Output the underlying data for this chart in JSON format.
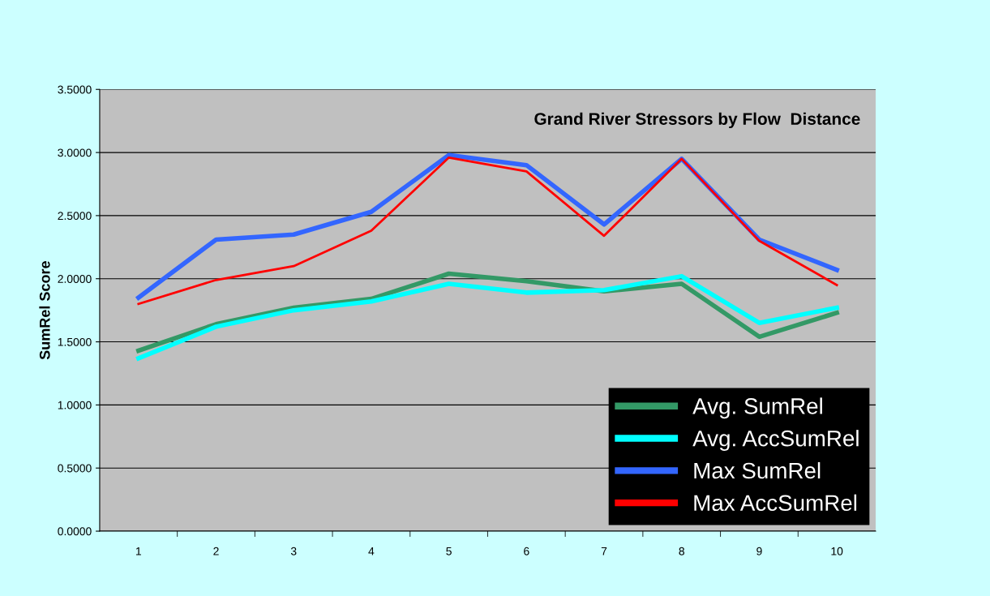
{
  "chart_data": {
    "type": "line",
    "title": "Grand River Stressors by Flow  Distance",
    "ylabel": "SumRel Score",
    "categories": [
      "1",
      "2",
      "3",
      "4",
      "5",
      "6",
      "7",
      "8",
      "9",
      "10"
    ],
    "series": [
      {
        "name": "Avg. SumRel",
        "color": "#339966",
        "values": [
          1.43,
          1.64,
          1.77,
          1.84,
          2.04,
          1.98,
          1.9,
          1.96,
          1.54,
          1.73
        ]
      },
      {
        "name": "Avg. AccSumRel",
        "color": "#00ffff",
        "values": [
          1.37,
          1.62,
          1.75,
          1.82,
          1.96,
          1.89,
          1.91,
          2.02,
          1.65,
          1.77
        ]
      },
      {
        "name": "Max SumRel",
        "color": "#3366ff",
        "values": [
          1.85,
          2.31,
          2.35,
          2.53,
          2.98,
          2.9,
          2.43,
          2.95,
          2.31,
          2.07
        ]
      },
      {
        "name": "Max AccSumRel",
        "color": "#ff0000",
        "values": [
          1.8,
          1.99,
          2.1,
          2.38,
          2.96,
          2.85,
          2.34,
          2.95,
          2.3,
          1.95
        ]
      }
    ],
    "ylim": [
      0,
      3.5
    ],
    "yticks": [
      {
        "value": 0,
        "label": "0.0000"
      },
      {
        "value": 0.5,
        "label": "0.5000"
      },
      {
        "value": 1,
        "label": "1.0000"
      },
      {
        "value": 1.5,
        "label": "1.5000"
      },
      {
        "value": 2,
        "label": "2.0000"
      },
      {
        "value": 2.5,
        "label": "2.5000"
      },
      {
        "value": 3,
        "label": "3.0000"
      },
      {
        "value": 3.5,
        "label": "3.5000"
      }
    ],
    "grid": "y",
    "legend": "bottom right",
    "marker": "none",
    "line_style": "solid"
  }
}
